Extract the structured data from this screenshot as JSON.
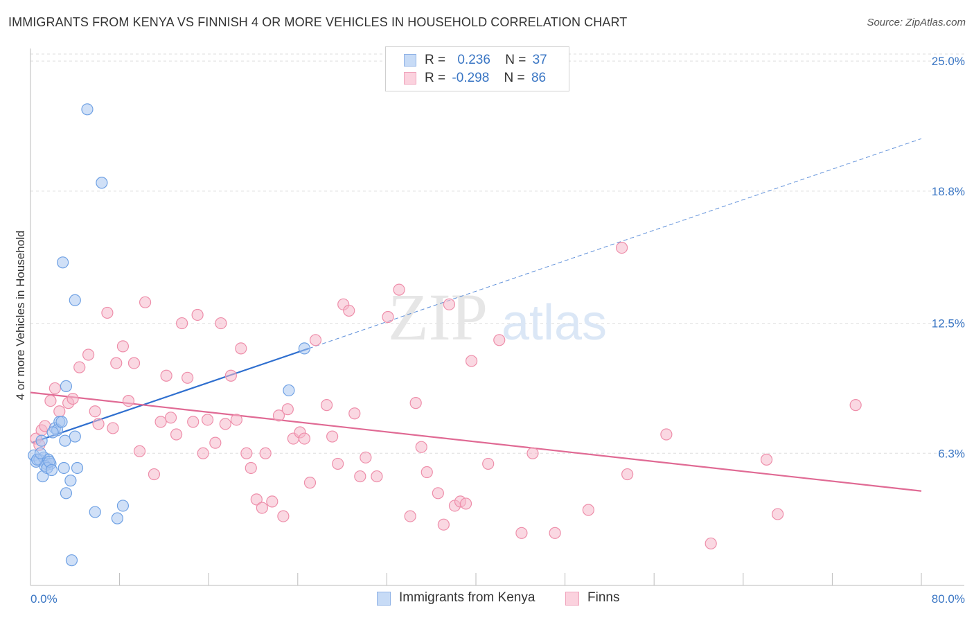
{
  "title": "IMMIGRANTS FROM KENYA VS FINNISH 4 OR MORE VEHICLES IN HOUSEHOLD CORRELATION CHART",
  "source": "Source: ZipAtlas.com",
  "watermark": {
    "zip": "ZIP",
    "atlas": "atlas"
  },
  "legend": {
    "rows": [
      {
        "r_label": "R =",
        "r_value": "0.236",
        "n_label": "N =",
        "n_value": "37",
        "color": "#a9c7f0"
      },
      {
        "r_label": "R =",
        "r_value": "-0.298",
        "n_label": "N =",
        "n_value": "86",
        "color": "#f6b8cb"
      }
    ]
  },
  "bottom_legend": [
    {
      "label": "Immigrants from Kenya",
      "color": "#a9c7f0"
    },
    {
      "label": "Finns",
      "color": "#f6b8cb"
    }
  ],
  "chart_data": {
    "type": "scatter",
    "ylabel": "4 or more Vehicles in Household",
    "xlim": [
      0,
      80
    ],
    "ylim": [
      0,
      25.6
    ],
    "x_tick_labels": [
      {
        "value": 0,
        "label": "0.0%"
      },
      {
        "value": 80,
        "label": "80.0%"
      }
    ],
    "y_tick_labels": [
      {
        "value": 6.3,
        "label": "6.3%"
      },
      {
        "value": 12.5,
        "label": "12.5%"
      },
      {
        "value": 18.8,
        "label": "18.8%"
      },
      {
        "value": 25.0,
        "label": "25.0%"
      }
    ],
    "x_minor_ticks": [
      8,
      16,
      24,
      32,
      40,
      48,
      56,
      64,
      72,
      80
    ],
    "grid": "horizontal dashed",
    "series": [
      {
        "name": "Immigrants from Kenya",
        "color": "#6fa1e4",
        "fill": "#a9c7f0",
        "trend": {
          "x0": 0.1,
          "y0": 6.8,
          "x1": 25,
          "y1": 11.3,
          "dashed_to_x": 80,
          "dashed_to_y": 21.3,
          "color": "#2f6fcf"
        },
        "points": [
          [
            0.3,
            6.2
          ],
          [
            0.5,
            5.9
          ],
          [
            0.8,
            6.0
          ],
          [
            1.0,
            6.9
          ],
          [
            1.2,
            6.1
          ],
          [
            1.4,
            5.8
          ],
          [
            1.6,
            6.0
          ],
          [
            1.8,
            5.8
          ],
          [
            1.1,
            5.2
          ],
          [
            1.3,
            5.7
          ],
          [
            1.5,
            5.6
          ],
          [
            1.7,
            5.9
          ],
          [
            2.2,
            7.5
          ],
          [
            2.6,
            7.8
          ],
          [
            2.4,
            7.4
          ],
          [
            2.8,
            7.8
          ],
          [
            3.1,
            6.9
          ],
          [
            3.0,
            5.6
          ],
          [
            3.2,
            4.4
          ],
          [
            3.6,
            5.0
          ],
          [
            4.0,
            7.1
          ],
          [
            4.2,
            5.6
          ],
          [
            2.9,
            15.4
          ],
          [
            4.0,
            13.6
          ],
          [
            5.1,
            22.7
          ],
          [
            6.4,
            19.2
          ],
          [
            3.2,
            9.5
          ],
          [
            5.8,
            3.5
          ],
          [
            7.8,
            3.2
          ],
          [
            8.3,
            3.8
          ],
          [
            3.7,
            1.2
          ],
          [
            24.6,
            11.3
          ],
          [
            23.2,
            9.3
          ],
          [
            0.6,
            6.0
          ],
          [
            0.9,
            6.3
          ],
          [
            2.0,
            7.3
          ],
          [
            1.9,
            5.5
          ]
        ]
      },
      {
        "name": "Finns",
        "color": "#ee8eaa",
        "fill": "#f6b8cb",
        "trend": {
          "x0": 0,
          "y0": 9.2,
          "x1": 80,
          "y1": 4.5,
          "color": "#e06a94"
        },
        "points": [
          [
            0.5,
            7.0
          ],
          [
            0.8,
            6.7
          ],
          [
            1.0,
            7.4
          ],
          [
            1.3,
            7.6
          ],
          [
            1.8,
            8.8
          ],
          [
            2.2,
            9.4
          ],
          [
            2.6,
            8.3
          ],
          [
            3.4,
            8.7
          ],
          [
            3.8,
            8.9
          ],
          [
            4.4,
            10.4
          ],
          [
            5.2,
            11.0
          ],
          [
            5.8,
            8.3
          ],
          [
            6.1,
            7.7
          ],
          [
            6.9,
            13.0
          ],
          [
            7.4,
            7.5
          ],
          [
            7.7,
            10.6
          ],
          [
            8.3,
            11.4
          ],
          [
            8.8,
            8.8
          ],
          [
            9.3,
            10.6
          ],
          [
            9.8,
            6.4
          ],
          [
            10.3,
            13.5
          ],
          [
            11.1,
            5.3
          ],
          [
            11.7,
            7.8
          ],
          [
            12.2,
            10.0
          ],
          [
            12.6,
            8.0
          ],
          [
            13.1,
            7.2
          ],
          [
            13.6,
            12.5
          ],
          [
            14.1,
            9.9
          ],
          [
            14.6,
            7.8
          ],
          [
            15.0,
            12.9
          ],
          [
            15.5,
            6.3
          ],
          [
            15.9,
            7.9
          ],
          [
            16.6,
            6.8
          ],
          [
            17.1,
            12.5
          ],
          [
            17.5,
            7.7
          ],
          [
            18.0,
            10.0
          ],
          [
            18.5,
            7.9
          ],
          [
            18.9,
            11.3
          ],
          [
            19.4,
            6.3
          ],
          [
            19.8,
            5.6
          ],
          [
            20.3,
            4.1
          ],
          [
            20.8,
            3.7
          ],
          [
            21.1,
            6.3
          ],
          [
            21.7,
            4.0
          ],
          [
            22.3,
            8.1
          ],
          [
            22.7,
            3.3
          ],
          [
            23.1,
            8.4
          ],
          [
            23.6,
            7.0
          ],
          [
            24.2,
            7.3
          ],
          [
            24.6,
            7.0
          ],
          [
            25.1,
            4.9
          ],
          [
            25.6,
            11.7
          ],
          [
            26.6,
            8.6
          ],
          [
            27.1,
            7.1
          ],
          [
            27.6,
            5.8
          ],
          [
            28.1,
            13.4
          ],
          [
            28.6,
            13.1
          ],
          [
            29.1,
            8.2
          ],
          [
            29.6,
            5.2
          ],
          [
            30.1,
            6.1
          ],
          [
            31.1,
            5.2
          ],
          [
            32.1,
            12.8
          ],
          [
            33.1,
            14.1
          ],
          [
            34.1,
            3.3
          ],
          [
            34.6,
            8.7
          ],
          [
            35.1,
            6.6
          ],
          [
            35.6,
            5.4
          ],
          [
            36.6,
            4.4
          ],
          [
            37.1,
            2.9
          ],
          [
            37.6,
            13.4
          ],
          [
            38.1,
            3.8
          ],
          [
            38.6,
            4.0
          ],
          [
            39.1,
            3.9
          ],
          [
            39.6,
            10.7
          ],
          [
            41.1,
            5.8
          ],
          [
            42.1,
            11.7
          ],
          [
            44.1,
            2.5
          ],
          [
            45.1,
            6.3
          ],
          [
            47.1,
            2.5
          ],
          [
            50.1,
            3.6
          ],
          [
            53.1,
            16.1
          ],
          [
            53.6,
            5.3
          ],
          [
            57.1,
            7.2
          ],
          [
            61.1,
            2.0
          ],
          [
            66.1,
            6.0
          ],
          [
            67.1,
            3.4
          ],
          [
            74.1,
            8.6
          ]
        ]
      }
    ]
  }
}
